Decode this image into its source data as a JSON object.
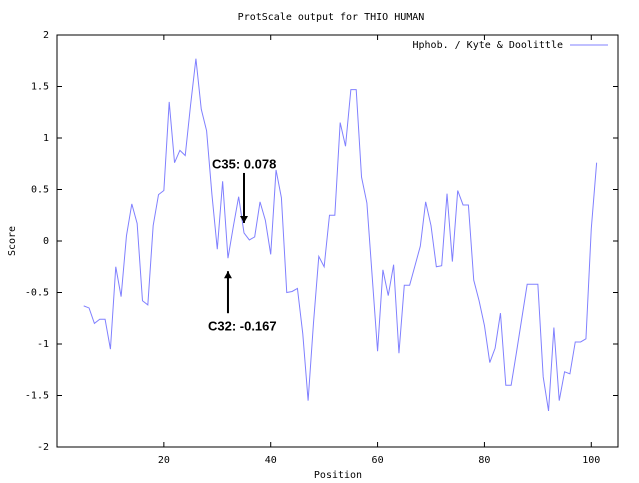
{
  "chart_data": {
    "type": "line",
    "title": "ProtScale output for THIO HUMAN",
    "x_label": "Position",
    "y_label": "Score",
    "x": [
      5,
      6,
      7,
      8,
      9,
      10,
      11,
      12,
      13,
      14,
      15,
      16,
      17,
      18,
      19,
      20,
      21,
      22,
      23,
      24,
      25,
      26,
      27,
      28,
      29,
      30,
      31,
      32,
      33,
      34,
      35,
      36,
      37,
      38,
      39,
      40,
      41,
      42,
      43,
      44,
      45,
      46,
      47,
      48,
      49,
      50,
      51,
      52,
      53,
      54,
      55,
      56,
      57,
      58,
      59,
      60,
      61,
      62,
      63,
      64,
      65,
      66,
      67,
      68,
      69,
      70,
      71,
      72,
      73,
      74,
      75,
      76,
      77,
      78,
      79,
      80,
      81,
      82,
      83,
      84,
      85,
      86,
      87,
      88,
      89,
      90,
      91,
      92,
      93,
      94,
      95,
      96,
      97,
      98,
      99,
      100,
      101
    ],
    "series": [
      {
        "name": "Hphob. / Kyte & Doolittle",
        "color": "#8080ff",
        "values": [
          -0.63,
          -0.65,
          -0.8,
          -0.76,
          -0.76,
          -1.05,
          -0.25,
          -0.54,
          0.05,
          0.36,
          0.17,
          -0.58,
          -0.62,
          0.15,
          0.45,
          0.49,
          1.35,
          0.76,
          0.88,
          0.83,
          1.32,
          1.77,
          1.28,
          1.07,
          0.45,
          -0.08,
          0.58,
          -0.167,
          0.14,
          0.43,
          0.078,
          0.01,
          0.04,
          0.38,
          0.2,
          -0.13,
          0.69,
          0.42,
          -0.5,
          -0.49,
          -0.46,
          -0.9,
          -1.55,
          -0.8,
          -0.15,
          -0.25,
          0.25,
          0.25,
          1.15,
          0.92,
          1.47,
          1.47,
          0.62,
          0.37,
          -0.35,
          -1.07,
          -0.28,
          -0.53,
          -0.23,
          -1.09,
          -0.43,
          -0.43,
          -0.24,
          -0.05,
          0.38,
          0.15,
          -0.25,
          -0.24,
          0.46,
          -0.2,
          0.49,
          0.35,
          0.35,
          -0.38,
          -0.58,
          -0.82,
          -1.18,
          -1.04,
          -0.7,
          -1.4,
          -1.4,
          -1.08,
          -0.75,
          -0.42,
          -0.42,
          -0.42,
          -1.32,
          -1.65,
          -0.84,
          -1.55,
          -1.27,
          -1.29,
          -0.98,
          -0.98,
          -0.95,
          0.12,
          0.76
        ]
      }
    ],
    "xlim": [
      0,
      105
    ],
    "xticks": [
      20,
      40,
      60,
      80,
      100
    ],
    "ylim": [
      -2,
      2
    ],
    "yticks": [
      -2,
      -1.5,
      -1,
      -0.5,
      0,
      0.5,
      1,
      1.5,
      2
    ],
    "grid": false,
    "legend": "upper right",
    "annotations": [
      {
        "text": "C35: 0.078",
        "x": 35,
        "y": 0.078,
        "side": "above"
      },
      {
        "text": "C32: -0.167",
        "x": 32,
        "y": -0.167,
        "side": "below"
      }
    ]
  }
}
